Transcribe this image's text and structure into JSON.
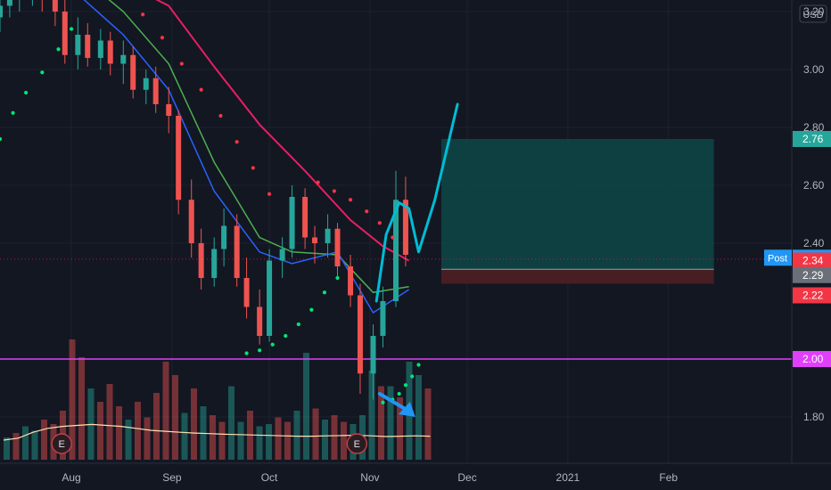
{
  "chart_data": {
    "type": "candlestick",
    "title": "",
    "currency": "USD",
    "y_axis": {
      "ticks": [
        "3.20",
        "3.00",
        "2.80",
        "2.60",
        "2.40",
        "1.80"
      ],
      "ylim": [
        1.64,
        3.24
      ]
    },
    "x_axis": {
      "labels": [
        {
          "label": "Aug",
          "date": "2020-08-01"
        },
        {
          "label": "Sep",
          "date": "2020-09-01"
        },
        {
          "label": "Oct",
          "date": "2020-10-01"
        },
        {
          "label": "Nov",
          "date": "2020-11-01"
        },
        {
          "label": "Dec",
          "date": "2020-12-01"
        },
        {
          "label": "2021",
          "date": "2021-01-01"
        },
        {
          "label": "Feb",
          "date": "2021-02-01"
        }
      ],
      "range": [
        "2020-07-10",
        "2021-03-11"
      ]
    },
    "colors": {
      "up": "#26a69a",
      "down": "#ef5350",
      "ema_fast": "#2962ff",
      "ema_mid": "#4caf50",
      "ma_slow": "#e91e63",
      "sar": "#00e676",
      "projection": "#00bcd4",
      "volume_ma": "#ffe0b2",
      "support": "#e040fb",
      "arrow": "#2196f3"
    },
    "candles": [
      [
        "2020-07-10",
        3.18,
        3.27,
        3.13,
        3.22
      ],
      [
        "2020-07-13",
        3.22,
        3.29,
        3.18,
        3.25
      ],
      [
        "2020-07-16",
        3.25,
        3.33,
        3.2,
        3.28
      ],
      [
        "2020-07-20",
        3.28,
        3.35,
        3.22,
        3.3
      ],
      [
        "2020-07-23",
        3.3,
        3.34,
        3.2,
        3.24
      ],
      [
        "2020-07-27",
        3.24,
        3.3,
        3.15,
        3.2
      ],
      [
        "2020-07-30",
        3.2,
        3.25,
        3.02,
        3.05
      ],
      [
        "2020-08-03",
        3.05,
        3.18,
        3.0,
        3.12
      ],
      [
        "2020-08-06",
        3.12,
        3.16,
        3.01,
        3.04
      ],
      [
        "2020-08-10",
        3.04,
        3.14,
        3.0,
        3.1
      ],
      [
        "2020-08-13",
        3.1,
        3.13,
        2.98,
        3.02
      ],
      [
        "2020-08-17",
        3.02,
        3.1,
        2.95,
        3.05
      ],
      [
        "2020-08-20",
        3.05,
        3.08,
        2.9,
        2.93
      ],
      [
        "2020-08-24",
        2.93,
        3.0,
        2.88,
        2.97
      ],
      [
        "2020-08-27",
        2.97,
        3.01,
        2.85,
        2.88
      ],
      [
        "2020-08-31",
        2.88,
        2.94,
        2.78,
        2.84
      ],
      [
        "2020-09-03",
        2.84,
        2.86,
        2.5,
        2.55
      ],
      [
        "2020-09-07",
        2.55,
        2.62,
        2.35,
        2.4
      ],
      [
        "2020-09-10",
        2.4,
        2.45,
        2.24,
        2.28
      ],
      [
        "2020-09-14",
        2.28,
        2.42,
        2.25,
        2.38
      ],
      [
        "2020-09-17",
        2.38,
        2.52,
        2.32,
        2.46
      ],
      [
        "2020-09-21",
        2.46,
        2.5,
        2.25,
        2.28
      ],
      [
        "2020-09-24",
        2.28,
        2.35,
        2.14,
        2.18
      ],
      [
        "2020-09-28",
        2.18,
        2.24,
        2.05,
        2.08
      ],
      [
        "2020-10-01",
        2.08,
        2.38,
        2.06,
        2.34
      ],
      [
        "2020-10-05",
        2.34,
        2.42,
        2.28,
        2.38
      ],
      [
        "2020-10-08",
        2.38,
        2.6,
        2.35,
        2.56
      ],
      [
        "2020-10-12",
        2.56,
        2.59,
        2.38,
        2.42
      ],
      [
        "2020-10-15",
        2.42,
        2.46,
        2.33,
        2.4
      ],
      [
        "2020-10-19",
        2.4,
        2.5,
        2.35,
        2.45
      ],
      [
        "2020-10-22",
        2.45,
        2.47,
        2.28,
        2.32
      ],
      [
        "2020-10-26",
        2.32,
        2.36,
        2.18,
        2.22
      ],
      [
        "2020-10-29",
        2.22,
        2.26,
        1.88,
        1.95
      ],
      [
        "2020-11-02",
        1.95,
        2.12,
        1.86,
        2.08
      ],
      [
        "2020-11-05",
        2.08,
        2.25,
        2.04,
        2.2
      ],
      [
        "2020-11-09",
        2.2,
        2.65,
        2.18,
        2.55
      ],
      [
        "2020-11-12",
        2.55,
        2.63,
        2.32,
        2.36
      ]
    ],
    "ema_fast": [
      [
        "2020-08-03",
        3.26
      ],
      [
        "2020-08-17",
        3.12
      ],
      [
        "2020-08-31",
        2.93
      ],
      [
        "2020-09-14",
        2.58
      ],
      [
        "2020-09-28",
        2.37
      ],
      [
        "2020-10-08",
        2.33
      ],
      [
        "2020-10-22",
        2.37
      ],
      [
        "2020-11-02",
        2.16
      ],
      [
        "2020-11-13",
        2.24
      ]
    ],
    "ema_mid": [
      [
        "2020-08-03",
        3.33
      ],
      [
        "2020-08-17",
        3.2
      ],
      [
        "2020-08-31",
        3.02
      ],
      [
        "2020-09-14",
        2.68
      ],
      [
        "2020-09-28",
        2.42
      ],
      [
        "2020-10-08",
        2.37
      ],
      [
        "2020-10-22",
        2.36
      ],
      [
        "2020-11-02",
        2.23
      ],
      [
        "2020-11-13",
        2.25
      ]
    ],
    "ma_slow": [
      [
        "2020-08-17",
        3.3
      ],
      [
        "2020-08-31",
        3.22
      ],
      [
        "2020-09-14",
        3.01
      ],
      [
        "2020-09-28",
        2.81
      ],
      [
        "2020-10-12",
        2.65
      ],
      [
        "2020-10-26",
        2.48
      ],
      [
        "2020-11-05",
        2.39
      ],
      [
        "2020-11-13",
        2.34
      ]
    ],
    "sar_points": [
      [
        "2020-07-10",
        2.76
      ],
      [
        "2020-07-14",
        2.85
      ],
      [
        "2020-07-18",
        2.92
      ],
      [
        "2020-07-23",
        2.99
      ],
      [
        "2020-07-28",
        3.07
      ],
      [
        "2020-08-01",
        3.14
      ],
      [
        "2020-08-23",
        3.19
      ],
      [
        "2020-08-29",
        3.11
      ],
      [
        "2020-09-04",
        3.02
      ],
      [
        "2020-09-10",
        2.93
      ],
      [
        "2020-09-16",
        2.84
      ],
      [
        "2020-09-21",
        2.75
      ],
      [
        "2020-09-26",
        2.66
      ],
      [
        "2020-10-01",
        2.57
      ],
      [
        "2020-09-24",
        2.02
      ],
      [
        "2020-09-28",
        2.03
      ],
      [
        "2020-10-02",
        2.05
      ],
      [
        "2020-10-06",
        2.08
      ],
      [
        "2020-10-10",
        2.12
      ],
      [
        "2020-10-14",
        2.17
      ],
      [
        "2020-10-18",
        2.23
      ],
      [
        "2020-10-22",
        2.28
      ],
      [
        "2020-10-16",
        2.61
      ],
      [
        "2020-10-21",
        2.58
      ],
      [
        "2020-10-26",
        2.55
      ],
      [
        "2020-10-31",
        2.51
      ],
      [
        "2020-11-04",
        2.47
      ],
      [
        "2020-11-08",
        2.42
      ],
      [
        "2020-11-05",
        1.85
      ],
      [
        "2020-11-08",
        1.86
      ],
      [
        "2020-11-10",
        1.88
      ],
      [
        "2020-11-12",
        1.91
      ],
      [
        "2020-11-14",
        1.94
      ],
      [
        "2020-11-16",
        1.98
      ]
    ],
    "projection_path": [
      [
        "2020-11-03",
        2.2
      ],
      [
        "2020-11-06",
        2.43
      ],
      [
        "2020-11-10",
        2.54
      ],
      [
        "2020-11-13",
        2.52
      ],
      [
        "2020-11-16",
        2.37
      ],
      [
        "2020-11-21",
        2.55
      ],
      [
        "2020-11-28",
        2.88
      ]
    ],
    "position": {
      "start": "2020-11-23",
      "end": "2021-02-15",
      "target": 2.76,
      "entry": 2.31,
      "stop": 2.26
    },
    "support_line": 2.0,
    "arrow": {
      "from": [
        "2020-11-04",
        1.88
      ],
      "to": [
        "2020-11-15",
        1.8
      ]
    },
    "price_labels": [
      {
        "label": "",
        "value": "2.76",
        "color": "#26a69a"
      },
      {
        "label": "Post",
        "value": "2.35",
        "color": "#2196f3"
      },
      {
        "label": "",
        "value": "2.34",
        "color": "#f23645"
      },
      {
        "label": "",
        "value": "2.29",
        "color": "#6b6f7a"
      },
      {
        "label": "",
        "value": "2.22",
        "color": "#f23645"
      },
      {
        "label": "",
        "value": "2.00",
        "color": "#e040fb"
      }
    ],
    "post_line": 2.345,
    "volume": [
      [
        1.0,
        1
      ],
      [
        1.2,
        0
      ],
      [
        1.5,
        1
      ],
      [
        1.3,
        1
      ],
      [
        1.8,
        0
      ],
      [
        1.6,
        0
      ],
      [
        2.2,
        0
      ],
      [
        5.4,
        0
      ],
      [
        4.6,
        0
      ],
      [
        3.2,
        1
      ],
      [
        2.6,
        0
      ],
      [
        3.4,
        0
      ],
      [
        2.4,
        0
      ],
      [
        1.8,
        1
      ],
      [
        2.6,
        0
      ],
      [
        1.9,
        0
      ],
      [
        3.0,
        0
      ],
      [
        4.4,
        0
      ],
      [
        3.8,
        0
      ],
      [
        2.1,
        1
      ],
      [
        3.2,
        0
      ],
      [
        2.4,
        1
      ],
      [
        2.0,
        0
      ],
      [
        1.7,
        0
      ],
      [
        3.3,
        1
      ],
      [
        1.7,
        1
      ],
      [
        2.2,
        0
      ],
      [
        1.5,
        1
      ],
      [
        1.6,
        1
      ],
      [
        1.9,
        0
      ],
      [
        1.7,
        0
      ],
      [
        2.2,
        1
      ],
      [
        4.8,
        1
      ],
      [
        2.3,
        0
      ],
      [
        1.8,
        1
      ],
      [
        2.0,
        0
      ],
      [
        1.7,
        0
      ],
      [
        1.6,
        1
      ],
      [
        2.0,
        1
      ],
      [
        4.0,
        1
      ],
      [
        3.3,
        0
      ],
      [
        3.3,
        1
      ],
      [
        2.8,
        0
      ],
      [
        4.4,
        1
      ],
      [
        3.8,
        1
      ],
      [
        3.2,
        0
      ]
    ],
    "volume_ma": [
      1.0,
      1.1,
      1.4,
      1.6,
      1.7,
      1.75,
      1.8,
      1.75,
      1.7,
      1.6,
      1.5,
      1.45,
      1.4,
      1.36,
      1.33,
      1.3,
      1.28,
      1.26,
      1.24,
      1.22,
      1.2,
      1.2,
      1.22,
      1.23,
      1.25,
      1.22,
      1.18,
      1.2,
      1.22,
      1.2
    ],
    "earnings_markers": [
      {
        "label": "E",
        "date": "2020-07-29"
      },
      {
        "label": "E",
        "date": "2020-10-28"
      }
    ]
  }
}
